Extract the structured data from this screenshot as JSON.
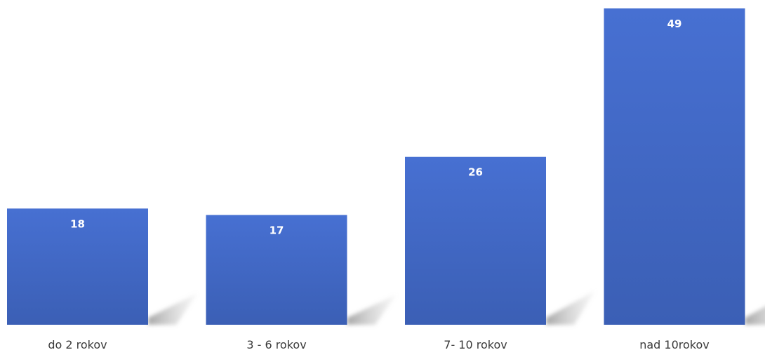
{
  "chart_data": {
    "type": "bar",
    "categories": [
      "do 2 rokov",
      "3 - 6 rokov",
      "7- 10 rokov",
      "nad 10rokov"
    ],
    "values": [
      18,
      17,
      26,
      49
    ],
    "ylim": [
      0,
      49
    ],
    "grid": false,
    "legend": "none",
    "data_labels": true,
    "colors": {
      "bar_top": "#4770d2",
      "bar_bottom": "#3b5fb5",
      "shadow": "#9a9a9a",
      "label_text": "#ffffff",
      "category_text": "#3a3a3a"
    }
  }
}
